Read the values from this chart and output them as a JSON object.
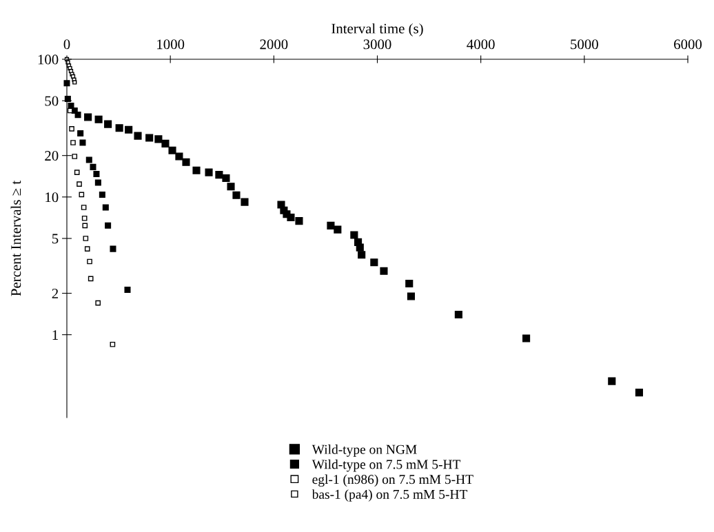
{
  "chart_data": {
    "type": "scatter",
    "xlabel": "Interval time (s)",
    "ylabel": "Percent Intervals ≥ t",
    "xlim": [
      0,
      6000
    ],
    "xticks": [
      0,
      1000,
      2000,
      3000,
      4000,
      5000,
      6000
    ],
    "ylim": [
      0.25,
      100
    ],
    "yticks": [
      1,
      2,
      5,
      10,
      20,
      50,
      100
    ],
    "log": true,
    "grid": false,
    "legend": "bottom",
    "marker": "square",
    "series": [
      {
        "name": "Wild-type on NGM",
        "color": "#000000",
        "x": [
          204,
          307,
          397,
          507,
          597,
          686,
          797,
          885,
          952,
          1019,
          1085,
          1152,
          1252,
          1372,
          1471,
          1538,
          1585,
          1638,
          1718,
          2071,
          2097,
          2124,
          2164,
          2244,
          2550,
          2616,
          2776,
          2814,
          2832,
          2848,
          2969,
          3063,
          3308,
          3326,
          3785,
          4439,
          5266,
          5530
        ],
        "values": [
          38,
          36.6,
          33.8,
          31.7,
          30.8,
          27.8,
          26.9,
          26.3,
          24.4,
          21.8,
          19.7,
          17.9,
          15.6,
          15.1,
          14.5,
          13.7,
          11.9,
          10.3,
          9.2,
          8.8,
          8.0,
          7.5,
          7.1,
          6.7,
          6.2,
          5.8,
          5.3,
          4.7,
          4.3,
          3.8,
          3.35,
          2.9,
          2.35,
          1.9,
          1.4,
          0.94,
          0.46,
          0.38
        ]
      },
      {
        "name": "Wild-type on 7.5 mM 5-HT",
        "color": "#000000",
        "x": [
          0,
          9,
          40,
          75,
          107,
          131,
          153,
          215,
          253,
          286,
          302,
          342,
          375,
          397,
          446,
          586
        ],
        "values": [
          67,
          51.5,
          46,
          42.4,
          39.5,
          29,
          24.8,
          18.6,
          16.5,
          14.7,
          12.7,
          10.4,
          8.4,
          6.2,
          4.2,
          2.12
        ]
      },
      {
        "name": "egl-1 (n986) on 7.5 mM 5-HT",
        "color": "#ffffff",
        "x": [
          31,
          47,
          60,
          75,
          98,
          120,
          142,
          164,
          171,
          175,
          182,
          198,
          220,
          231,
          301,
          442
        ],
        "values": [
          42.4,
          31.3,
          24.8,
          19.7,
          15.1,
          12.4,
          10.4,
          8.4,
          7.0,
          6.2,
          5.0,
          4.2,
          3.4,
          2.55,
          1.7,
          0.85
        ]
      },
      {
        "name": "bas-1 (pa4) on 7.5 mM 5-HT",
        "color": "#ffffff",
        "x": [
          0,
          10,
          20,
          30,
          40,
          50,
          60,
          70,
          75
        ],
        "values": [
          100,
          95,
          90,
          86,
          82,
          78,
          75,
          71,
          68
        ]
      }
    ]
  }
}
